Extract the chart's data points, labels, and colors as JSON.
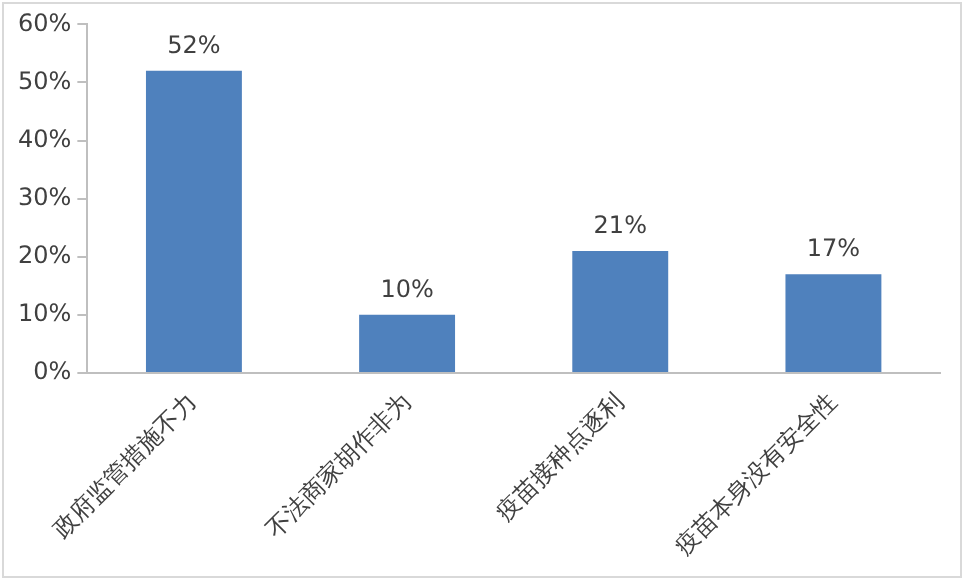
{
  "chart_data": {
    "type": "bar",
    "categories": [
      "政府监管措施不力",
      "不法商家胡作非为",
      "疫苗接种点逐利",
      "疫苗本身没有安全性"
    ],
    "values": [
      52,
      10,
      21,
      17
    ],
    "value_labels": [
      "52%",
      "10%",
      "21%",
      "17%"
    ],
    "color": "#4f81bd",
    "ylim": [
      0,
      60
    ],
    "yticks": [
      {
        "value": 0,
        "label": "0%"
      },
      {
        "value": 10,
        "label": "10%"
      },
      {
        "value": 20,
        "label": "20%"
      },
      {
        "value": 30,
        "label": "30%"
      },
      {
        "value": 40,
        "label": "40%"
      },
      {
        "value": 50,
        "label": "50%"
      },
      {
        "value": 60,
        "label": "60%"
      }
    ],
    "grid": false,
    "legend": false
  }
}
